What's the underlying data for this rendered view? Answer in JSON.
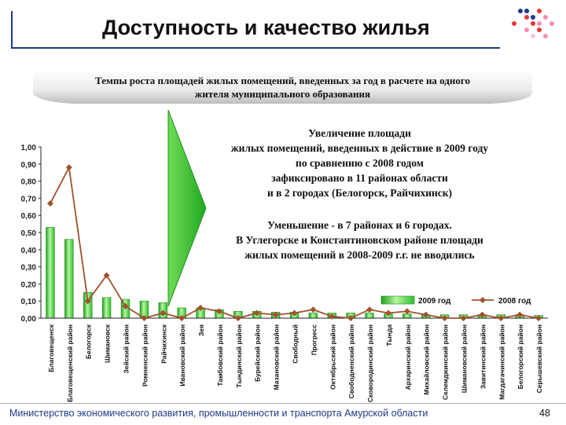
{
  "header": {
    "title": "Доступность и качество жилья"
  },
  "subtitle": {
    "line1": "Темпы роста площадей жилых помещений, введенных за год в расчете на одного",
    "line2": "жителя муниципального образования"
  },
  "notes": {
    "increase": [
      "Увеличение площади",
      "жилых помещений, введенных в действие в 2009 году",
      "по сравнению с 2008 годом",
      "зафиксировано в 11 районах области",
      "и в 2 городах (Белогорск, Райчихинск)"
    ],
    "decrease": [
      "Уменьшение - в 7 районах и 6 городах.",
      "В Углегорске и Константиновском районе площади",
      "жилых помещений в 2008-2009 г.г. не вводились"
    ]
  },
  "chart_data": {
    "type": "bar",
    "categories": [
      "Благовещенск",
      "Благовещенский район",
      "Белогорск",
      "Шимановск",
      "Зейский район",
      "Ромненский район",
      "Райчихинск",
      "Ивановский район",
      "Зея",
      "Тамбовский район",
      "Тындинский район",
      "Бурейский район",
      "Мазановский район",
      "Свободный",
      "Прогресс",
      "Октябрьский район",
      "Свободненский район",
      "Сковородинский район",
      "Тында",
      "Архаринский район",
      "Михайловский район",
      "Селемджинский район",
      "Шимановский район",
      "Завитинский район",
      "Магдагачинский район",
      "Белогорский район",
      "Серышевский район"
    ],
    "series": [
      {
        "name": "2009 год",
        "type": "bar",
        "color": "#33cc33",
        "values": [
          0.53,
          0.46,
          0.15,
          0.12,
          0.11,
          0.1,
          0.09,
          0.06,
          0.06,
          0.05,
          0.04,
          0.04,
          0.035,
          0.035,
          0.03,
          0.03,
          0.03,
          0.03,
          0.025,
          0.025,
          0.02,
          0.02,
          0.02,
          0.02,
          0.02,
          0.02,
          0.015
        ]
      },
      {
        "name": "2008 год",
        "type": "line",
        "color": "#a0522d",
        "values": [
          0.67,
          0.88,
          0.1,
          0.25,
          0.07,
          0.0,
          0.03,
          0.0,
          0.06,
          0.04,
          0.0,
          0.03,
          0.02,
          0.03,
          0.05,
          0.01,
          0.0,
          0.05,
          0.03,
          0.04,
          0.02,
          0.0,
          0.0,
          0.02,
          0.0,
          0.02,
          0.0
        ]
      }
    ],
    "yticks": [
      "1,00",
      "0,90",
      "0,80",
      "0,70",
      "0,60",
      "0,50",
      "0,40",
      "0,30",
      "0,20",
      "0,10",
      "0,00"
    ],
    "ylim": [
      0,
      1.0
    ],
    "grid": false,
    "legend_position": "bottom-right"
  },
  "footer": {
    "ministry": "Министерство экономического развития, промышленности и транспорта Амурской области",
    "page": "48"
  }
}
